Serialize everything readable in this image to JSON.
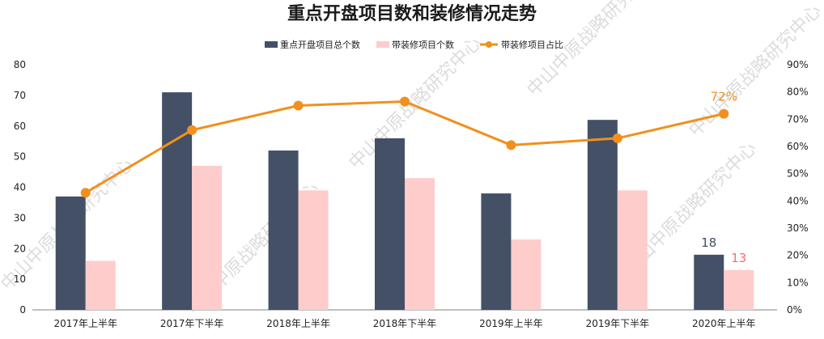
{
  "chart_data": {
    "type": "bar",
    "title": "重点开盘项目数和装修情况走势",
    "categories": [
      "2017年上半年",
      "2017年下半年",
      "2018年上半年",
      "2018年下半年",
      "2019年上半年",
      "2019年下半年",
      "2020年上半年"
    ],
    "series": [
      {
        "name": "重点开盘项目总个数",
        "type": "bar",
        "axis": "left",
        "color": "#435066",
        "values": [
          37,
          71,
          52,
          56,
          38,
          62,
          18
        ]
      },
      {
        "name": "带装修项目个数",
        "type": "bar",
        "axis": "left",
        "color": "#ffcccc",
        "values": [
          16,
          47,
          39,
          43,
          23,
          39,
          13
        ]
      },
      {
        "name": "带装修项目占比",
        "type": "line",
        "axis": "right",
        "color": "#f0901e",
        "values": [
          0.43,
          0.66,
          0.75,
          0.765,
          0.605,
          0.63,
          0.72
        ]
      }
    ],
    "y_left": {
      "min": 0,
      "max": 80,
      "ticks": [
        "0",
        "10",
        "20",
        "30",
        "40",
        "50",
        "60",
        "70",
        "80"
      ]
    },
    "y_right": {
      "min": 0,
      "max": 0.9,
      "ticks": [
        "0%",
        "10%",
        "20%",
        "30%",
        "40%",
        "50%",
        "60%",
        "70%",
        "80%",
        "90%"
      ]
    },
    "data_labels": [
      {
        "series": 0,
        "index": 6,
        "text": "18",
        "color": "#435066"
      },
      {
        "series": 1,
        "index": 6,
        "text": "13",
        "color": "#f07070"
      },
      {
        "series": 2,
        "index": 6,
        "text": "72%",
        "color": "#f0901e"
      }
    ],
    "legend_position": "top-center",
    "watermark": "中山中原战略研究中心"
  }
}
